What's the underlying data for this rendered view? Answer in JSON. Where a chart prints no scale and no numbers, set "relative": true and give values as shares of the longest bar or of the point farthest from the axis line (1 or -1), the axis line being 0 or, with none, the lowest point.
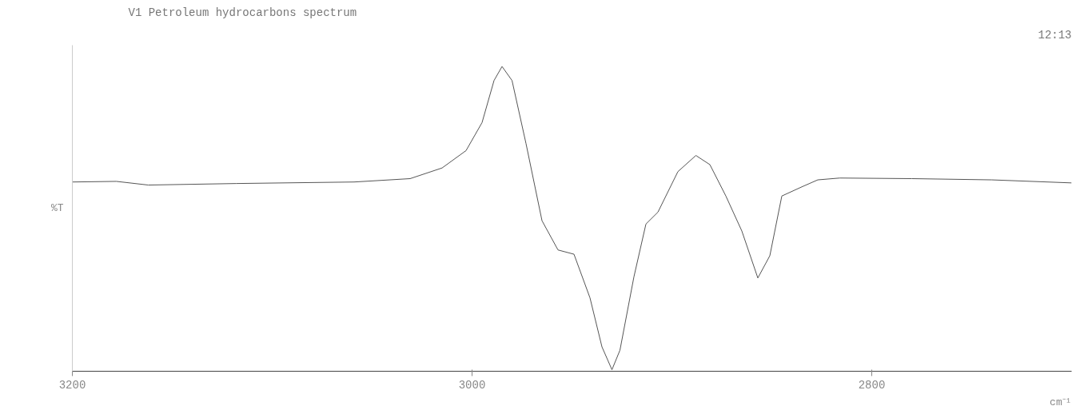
{
  "chart_data": {
    "type": "line",
    "title": "V1 Petroleum hydrocarbons spectrum",
    "ylabel": "%T",
    "xlabel": "cm⁻¹",
    "annotations": [
      "12:13"
    ],
    "relative": true,
    "xlim": [
      3200,
      2700
    ],
    "xticks": [
      3200,
      3000,
      2800
    ],
    "grid": false,
    "marker": "none",
    "line_style": "solid",
    "x": [
      3200,
      3178,
      3162,
      3118,
      3059,
      3031,
      3015,
      3003,
      2995,
      2989,
      2985,
      2980,
      2973,
      2965,
      2957,
      2949,
      2941,
      2935,
      2930,
      2926,
      2919,
      2913,
      2907,
      2897,
      2888,
      2881,
      2873,
      2865,
      2857,
      2851,
      2845,
      2835,
      2827,
      2816,
      2780,
      2740,
      2700
    ],
    "series": [
      {
        "color": "#555555",
        "values": [
          0.621,
          0.623,
          0.611,
          0.616,
          0.621,
          0.632,
          0.667,
          0.724,
          0.816,
          0.954,
          1.0,
          0.954,
          0.747,
          0.494,
          0.398,
          0.384,
          0.241,
          0.08,
          0.005,
          0.069,
          0.31,
          0.483,
          0.522,
          0.655,
          0.708,
          0.678,
          0.575,
          0.46,
          0.306,
          0.379,
          0.575,
          0.605,
          0.628,
          0.634,
          0.632,
          0.628,
          0.618
        ]
      }
    ]
  }
}
